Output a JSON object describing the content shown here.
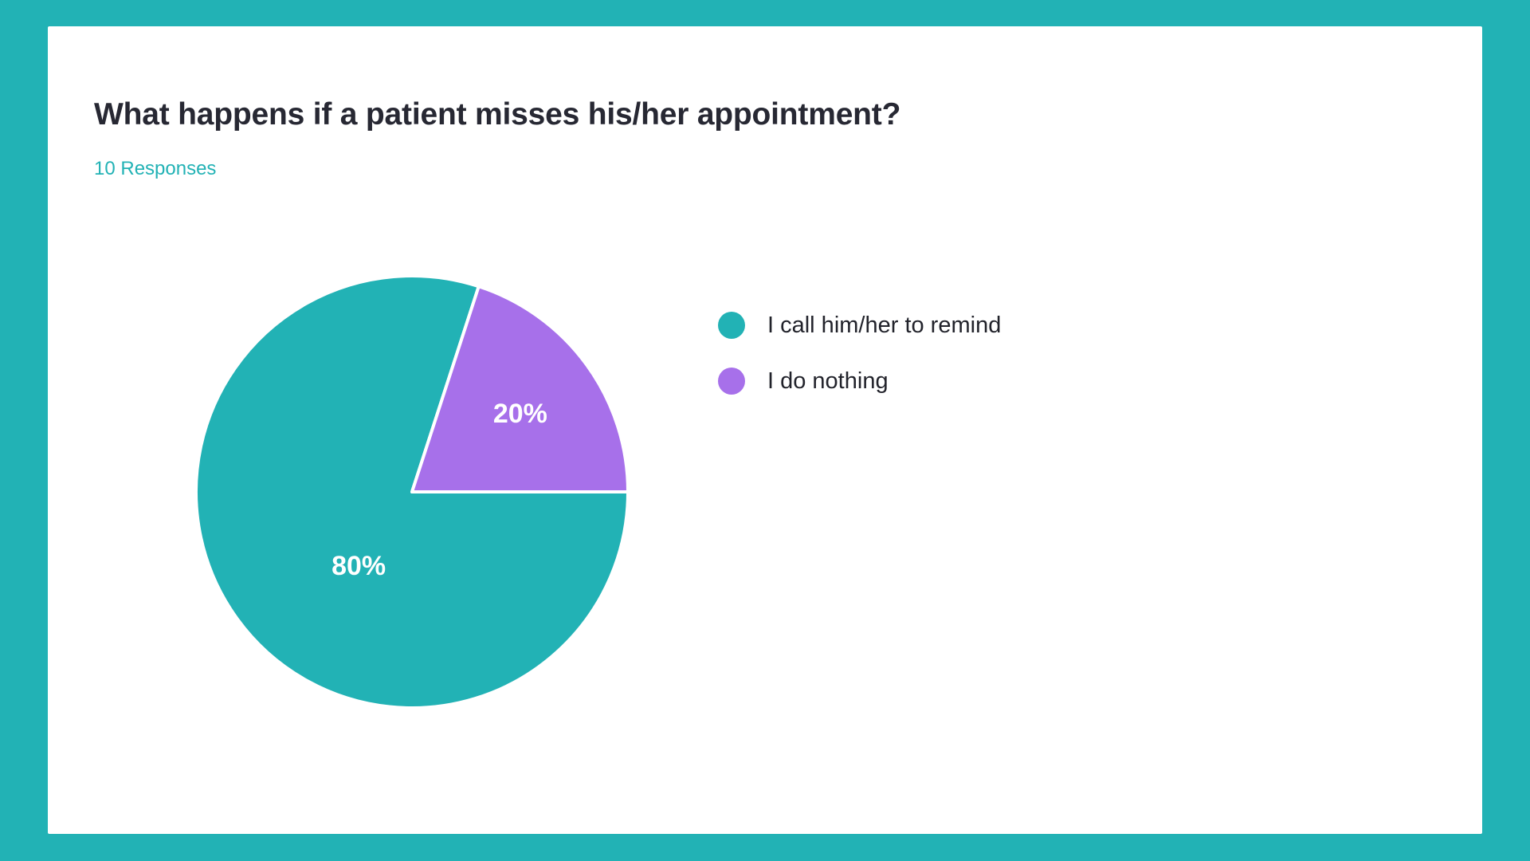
{
  "theme": {
    "frame_color": "#22B2B5",
    "card_background": "#FFFFFF",
    "title_color": "#272833",
    "subtitle_color": "#22B2B5",
    "legend_text_color": "#22232B"
  },
  "chart_data": {
    "type": "pie",
    "title": "What happens if a patient misses his/her appointment?",
    "subtitle": "10 Responses",
    "total_responses": 10,
    "labels": [
      "I call him/her to remind",
      "I do nothing"
    ],
    "values": [
      80,
      20
    ],
    "value_labels": [
      "80%",
      "20%"
    ],
    "colors": [
      "#22B2B5",
      "#A770EA"
    ],
    "slice_label_color": "#FFFFFF",
    "slice_divider_color": "#FFFFFF",
    "legend_position": "right",
    "start_angle_deg_clockwise_from_top": 90,
    "direction": "clockwise"
  }
}
